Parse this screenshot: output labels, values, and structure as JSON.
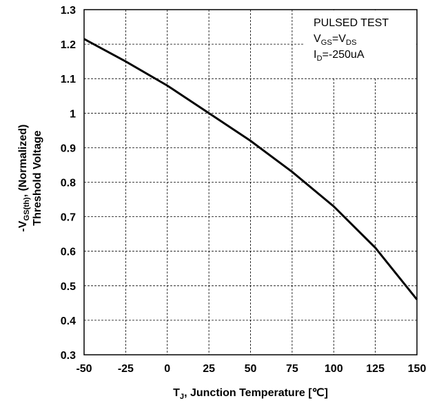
{
  "chart_data": {
    "type": "line",
    "x": [
      -50,
      -25,
      0,
      25,
      50,
      75,
      100,
      125,
      150
    ],
    "series": [
      {
        "color": "#000000",
        "values": [
          1.215,
          1.15,
          1.08,
          1.0,
          0.92,
          0.83,
          0.73,
          0.61,
          0.46
        ]
      }
    ],
    "xlim": [
      -50,
      150
    ],
    "ylim": [
      0.3,
      1.3
    ],
    "xticks": [
      -50,
      -25,
      0,
      25,
      50,
      75,
      100,
      125,
      150
    ],
    "yticks": [
      0.3,
      0.4,
      0.5,
      0.6,
      0.7,
      0.8,
      0.9,
      1,
      1.1,
      1.2,
      1.3
    ],
    "grid": true,
    "xlabel": [
      "T",
      "J",
      ", Junction Temperature [℃]"
    ],
    "ylabel": [
      [
        "-V",
        "GS(th)",
        ", (Normalized)"
      ],
      [
        "Threshold Voltage"
      ]
    ],
    "annotation": [
      [
        "PULSED TEST"
      ],
      [
        "V",
        "GS",
        "=V",
        "DS"
      ],
      [
        "I",
        "D",
        "=-250uA"
      ]
    ]
  }
}
